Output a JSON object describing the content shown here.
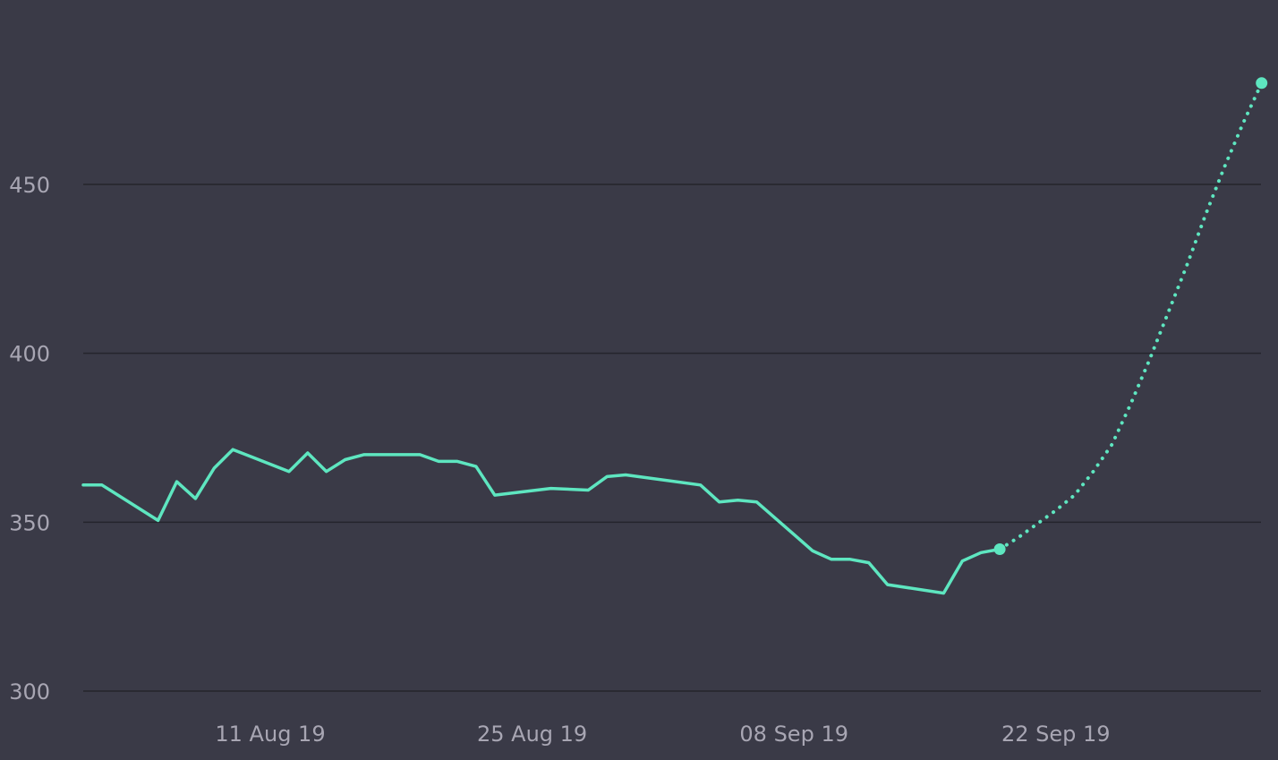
{
  "chart_data": {
    "type": "line",
    "title": "",
    "xlabel": "",
    "ylabel": "",
    "ylim": [
      300,
      500
    ],
    "xlim": [
      "2019-08-01",
      "2019-10-03"
    ],
    "grid": true,
    "y_ticks": [
      300,
      350,
      400,
      450
    ],
    "x_ticks": [
      {
        "date": "2019-08-11",
        "label": "11 Aug 19"
      },
      {
        "date": "2019-08-25",
        "label": "25 Aug 19"
      },
      {
        "date": "2019-09-08",
        "label": "08 Sep 19"
      },
      {
        "date": "2019-09-22",
        "label": "22 Sep 19"
      }
    ],
    "line_color": "#5ee6c0",
    "series": [
      {
        "style": "solid",
        "points": [
          {
            "x": "2019-08-01",
            "y": 361
          },
          {
            "x": "2019-08-02",
            "y": 361
          },
          {
            "x": "2019-08-05",
            "y": 350.5
          },
          {
            "x": "2019-08-06",
            "y": 362
          },
          {
            "x": "2019-08-07",
            "y": 357
          },
          {
            "x": "2019-08-08",
            "y": 366
          },
          {
            "x": "2019-08-09",
            "y": 371.5
          },
          {
            "x": "2019-08-12",
            "y": 365
          },
          {
            "x": "2019-08-13",
            "y": 370.5
          },
          {
            "x": "2019-08-14",
            "y": 365
          },
          {
            "x": "2019-08-15",
            "y": 368.5
          },
          {
            "x": "2019-08-16",
            "y": 370
          },
          {
            "x": "2019-08-19",
            "y": 370
          },
          {
            "x": "2019-08-20",
            "y": 368
          },
          {
            "x": "2019-08-21",
            "y": 368
          },
          {
            "x": "2019-08-22",
            "y": 366.5
          },
          {
            "x": "2019-08-23",
            "y": 358
          },
          {
            "x": "2019-08-26",
            "y": 360
          },
          {
            "x": "2019-08-28",
            "y": 359.5
          },
          {
            "x": "2019-08-29",
            "y": 363.5
          },
          {
            "x": "2019-08-30",
            "y": 364
          },
          {
            "x": "2019-09-03",
            "y": 361
          },
          {
            "x": "2019-09-04",
            "y": 356
          },
          {
            "x": "2019-09-05",
            "y": 356.5
          },
          {
            "x": "2019-09-06",
            "y": 356
          },
          {
            "x": "2019-09-09",
            "y": 341.5
          },
          {
            "x": "2019-09-10",
            "y": 339
          },
          {
            "x": "2019-09-11",
            "y": 339
          },
          {
            "x": "2019-09-12",
            "y": 338
          },
          {
            "x": "2019-09-13",
            "y": 331.5
          },
          {
            "x": "2019-09-16",
            "y": 329
          },
          {
            "x": "2019-09-17",
            "y": 338.5
          },
          {
            "x": "2019-09-18",
            "y": 341
          },
          {
            "x": "2019-09-19",
            "y": 342
          }
        ]
      },
      {
        "style": "dotted",
        "points": [
          {
            "x": "2019-09-19",
            "y": 342
          },
          {
            "x": "2019-09-20",
            "y": 345.5
          },
          {
            "x": "2019-09-21",
            "y": 349.5
          },
          {
            "x": "2019-09-22",
            "y": 353.5
          },
          {
            "x": "2019-09-23",
            "y": 358
          },
          {
            "x": "2019-09-24",
            "y": 365
          },
          {
            "x": "2019-09-25",
            "y": 373
          },
          {
            "x": "2019-09-26",
            "y": 385
          },
          {
            "x": "2019-09-27",
            "y": 398
          },
          {
            "x": "2019-09-28",
            "y": 412
          },
          {
            "x": "2019-09-29",
            "y": 426
          },
          {
            "x": "2019-09-30",
            "y": 441
          },
          {
            "x": "2019-10-01",
            "y": 455
          },
          {
            "x": "2019-10-02",
            "y": 468
          },
          {
            "x": "2019-10-03",
            "y": 480
          }
        ]
      }
    ],
    "markers": [
      {
        "x": "2019-09-19",
        "y": 342
      },
      {
        "x": "2019-10-03",
        "y": 480
      }
    ]
  }
}
